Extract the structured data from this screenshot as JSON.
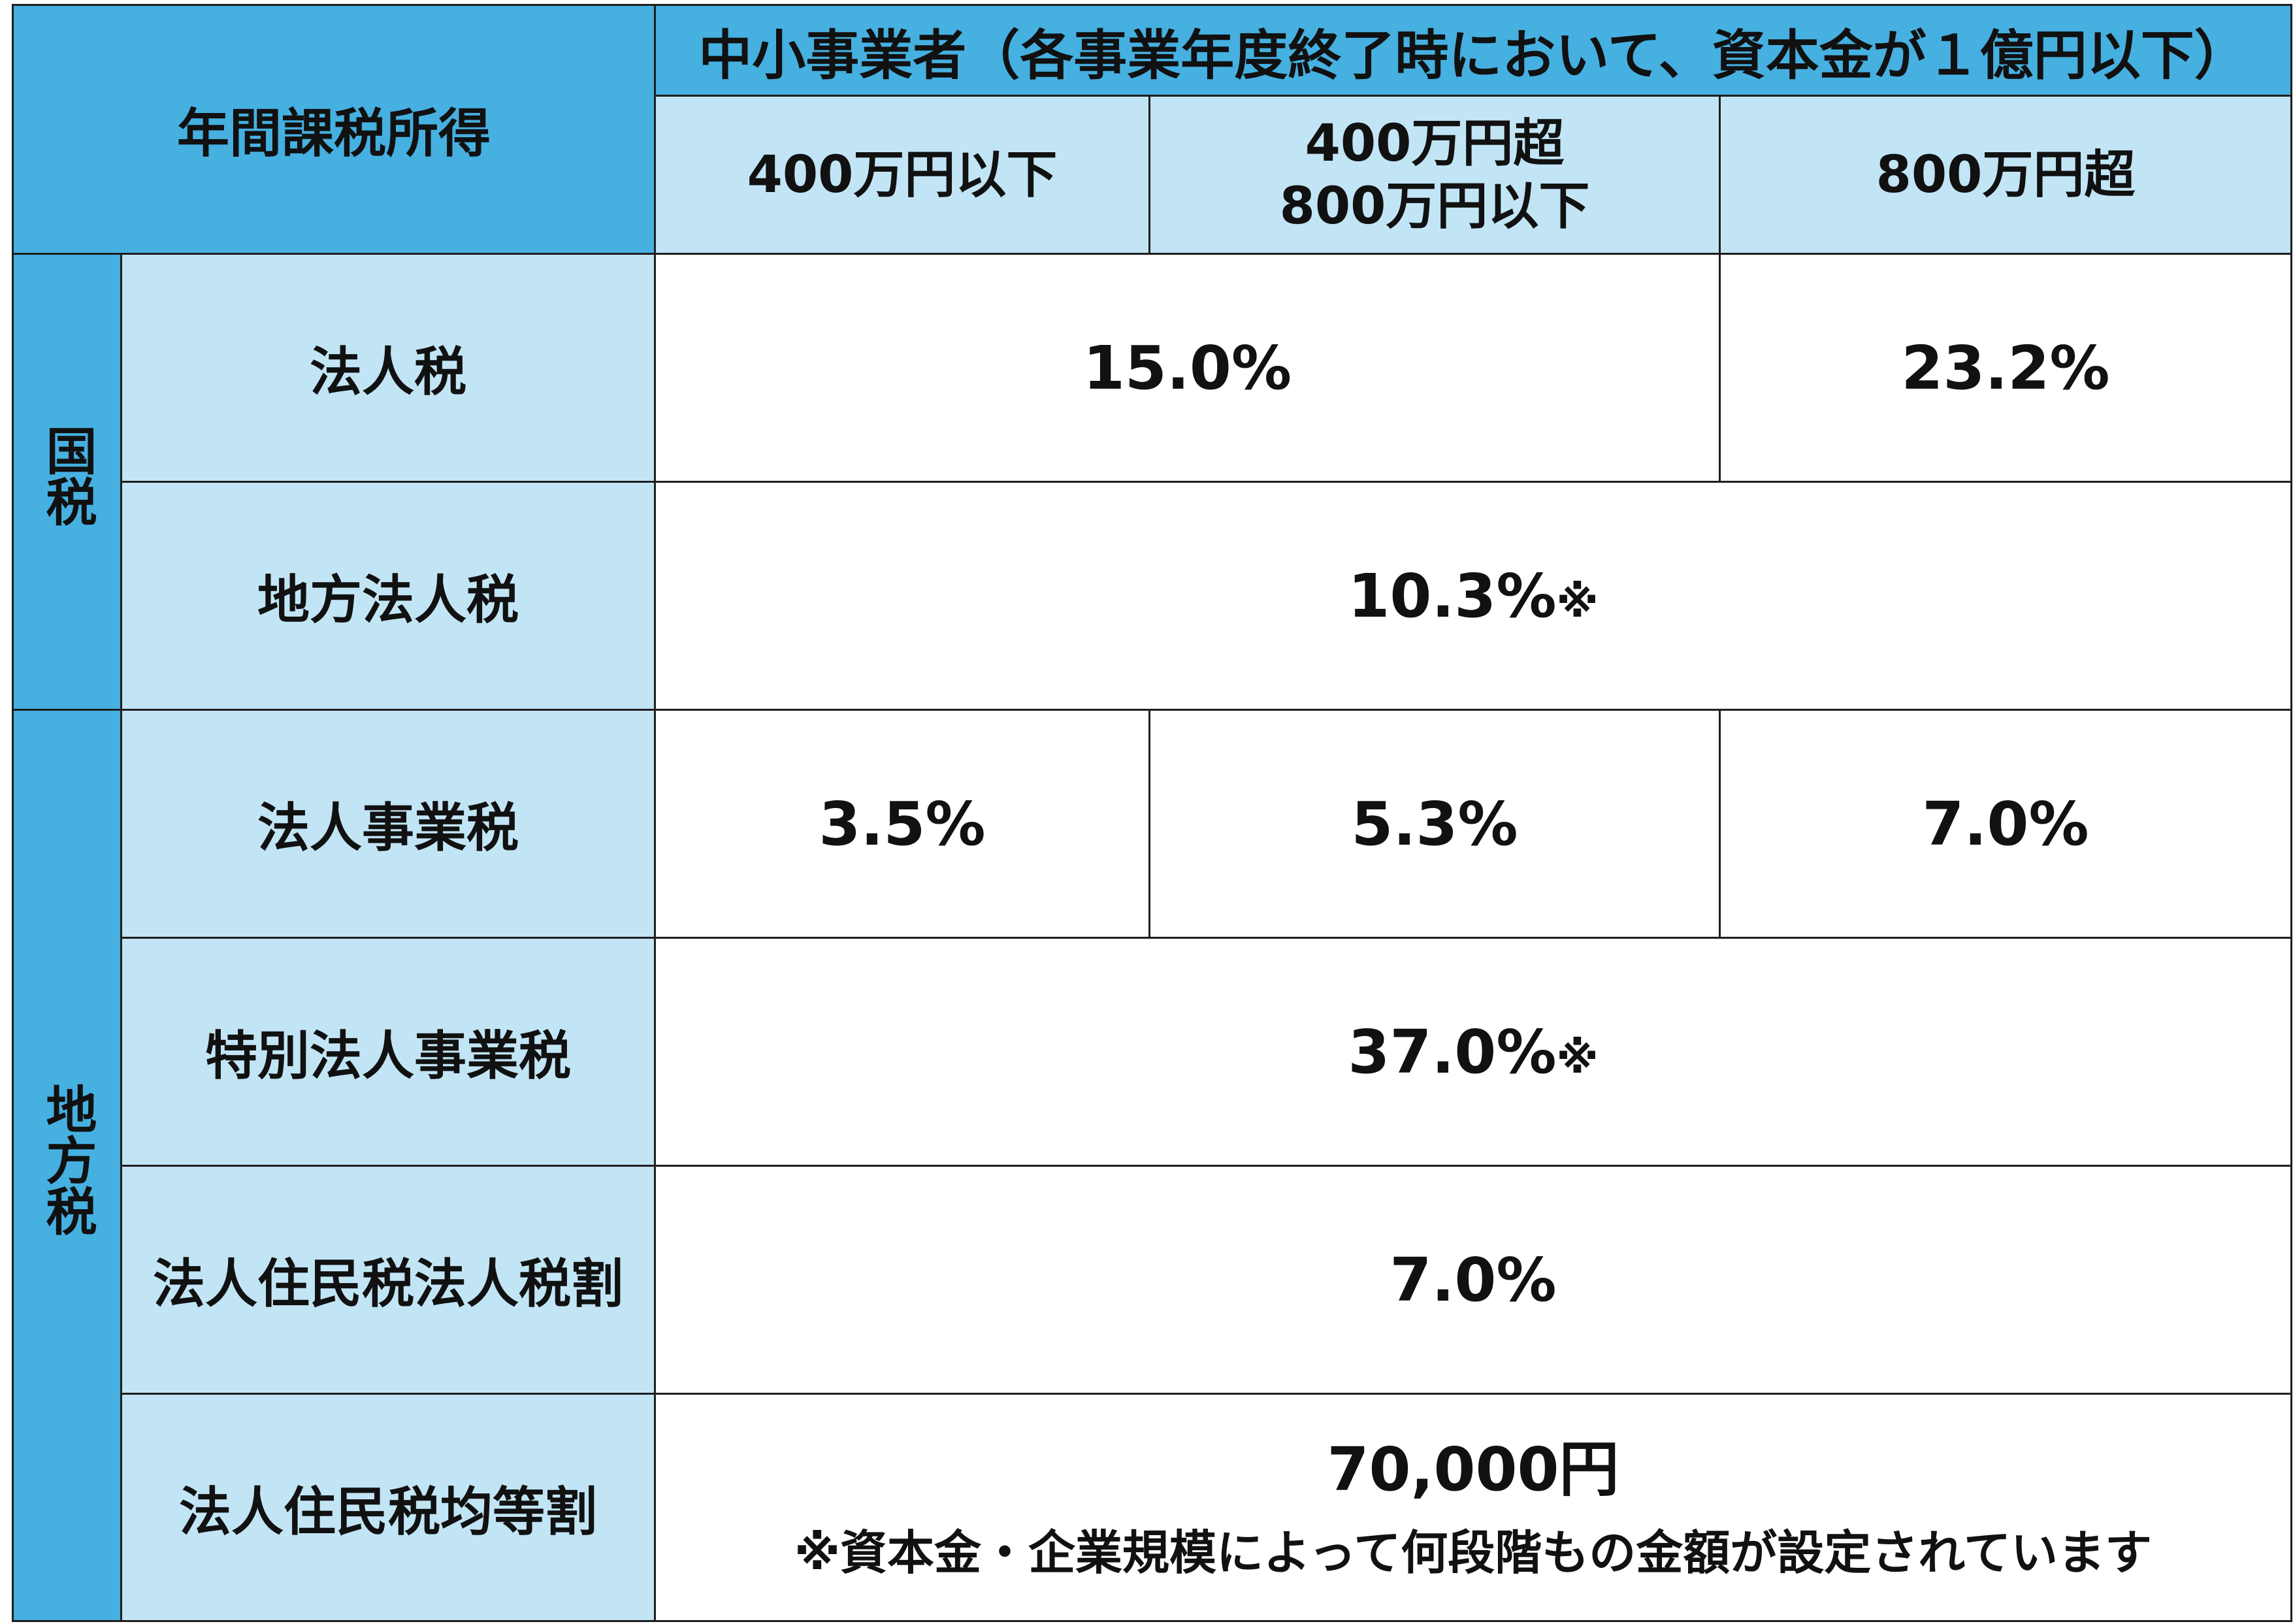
{
  "theme": {
    "header_blue": "#46b0e1",
    "label_blue": "#c2e5f5",
    "value_background": "#ffffff",
    "border": "#1e1e1e",
    "text": "#111111"
  },
  "table": {
    "corner_header": "年間課税所得",
    "group_header": "中小事業者（各事業年度終了時において、資本金が１億円以下）",
    "income_brackets": [
      {
        "lines": [
          "400万円以下"
        ]
      },
      {
        "lines": [
          "400万円超",
          "800万円以下"
        ]
      },
      {
        "lines": [
          "800万円超"
        ]
      }
    ],
    "sections": [
      {
        "category": "国税",
        "rows": [
          {
            "label": "法人税",
            "cells": [
              {
                "value": "15.0%"
              },
              {
                "value": "23.2%"
              }
            ]
          },
          {
            "label": "地方法人税",
            "cells": [
              {
                "value": "10.3%",
                "mark": "※"
              }
            ]
          }
        ]
      },
      {
        "category": "地方税",
        "rows": [
          {
            "label": "法人事業税",
            "cells": [
              {
                "value": "3.5%"
              },
              {
                "value": "5.3%"
              },
              {
                "value": "7.0%"
              }
            ]
          },
          {
            "label": "特別法人事業税",
            "cells": [
              {
                "value": "37.0%",
                "mark": "※"
              }
            ]
          },
          {
            "label": "法人住民税法人税割",
            "cells": [
              {
                "value": "7.0%"
              }
            ]
          },
          {
            "label": "法人住民税均等割",
            "cells": [
              {
                "value": "70,000円",
                "note": "※資本金・企業規模によって何段階もの金額が設定されています"
              }
            ]
          }
        ]
      }
    ]
  }
}
